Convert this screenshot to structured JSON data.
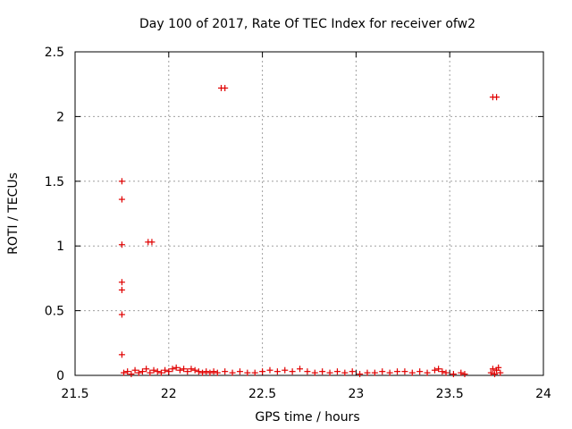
{
  "chart_data": {
    "type": "scatter",
    "title": "Day 100 of 2017, Rate Of TEC Index for receiver ofw2",
    "xlabel": "GPS time / hours",
    "ylabel": "ROTI / TECUs",
    "xlim": [
      21.5,
      24
    ],
    "ylim": [
      0,
      2.5
    ],
    "xticks": [
      21.5,
      22,
      22.5,
      23,
      23.5,
      24
    ],
    "xtick_labels": [
      "21.5",
      "22",
      "22.5",
      "23",
      "23.5",
      "24"
    ],
    "yticks": [
      0,
      0.5,
      1,
      1.5,
      2,
      2.5
    ],
    "ytick_labels": [
      "0",
      "0.5",
      "1",
      "1.5",
      "2",
      "2.5"
    ],
    "grid": true,
    "marker": "+",
    "color": "#e00000",
    "series": [
      {
        "name": "ofw2",
        "points": [
          [
            21.75,
            1.5
          ],
          [
            21.75,
            1.36
          ],
          [
            21.75,
            1.01
          ],
          [
            21.75,
            0.72
          ],
          [
            21.75,
            0.66
          ],
          [
            21.75,
            0.47
          ],
          [
            21.75,
            0.16
          ],
          [
            21.89,
            1.03
          ],
          [
            21.91,
            1.03
          ],
          [
            22.28,
            2.22
          ],
          [
            22.3,
            2.22
          ],
          [
            23.73,
            2.15
          ],
          [
            23.75,
            2.15
          ],
          [
            21.76,
            0.02
          ],
          [
            21.78,
            0.03
          ],
          [
            21.8,
            0.01
          ],
          [
            21.82,
            0.04
          ],
          [
            21.84,
            0.02
          ],
          [
            21.86,
            0.03
          ],
          [
            21.88,
            0.05
          ],
          [
            21.9,
            0.02
          ],
          [
            21.92,
            0.04
          ],
          [
            21.94,
            0.03
          ],
          [
            21.96,
            0.02
          ],
          [
            21.98,
            0.04
          ],
          [
            22.0,
            0.03
          ],
          [
            22.02,
            0.05
          ],
          [
            22.04,
            0.06
          ],
          [
            22.06,
            0.04
          ],
          [
            22.08,
            0.05
          ],
          [
            22.1,
            0.03
          ],
          [
            22.12,
            0.05
          ],
          [
            22.14,
            0.04
          ],
          [
            22.16,
            0.03
          ],
          [
            22.18,
            0.02
          ],
          [
            22.2,
            0.03
          ],
          [
            22.22,
            0.02
          ],
          [
            22.24,
            0.03
          ],
          [
            22.26,
            0.02
          ],
          [
            22.3,
            0.03
          ],
          [
            22.34,
            0.02
          ],
          [
            22.38,
            0.03
          ],
          [
            22.42,
            0.02
          ],
          [
            22.46,
            0.02
          ],
          [
            22.5,
            0.03
          ],
          [
            22.54,
            0.04
          ],
          [
            22.58,
            0.03
          ],
          [
            22.62,
            0.04
          ],
          [
            22.66,
            0.03
          ],
          [
            22.7,
            0.05
          ],
          [
            22.74,
            0.03
          ],
          [
            22.78,
            0.02
          ],
          [
            22.82,
            0.03
          ],
          [
            22.86,
            0.02
          ],
          [
            22.9,
            0.03
          ],
          [
            22.94,
            0.02
          ],
          [
            22.98,
            0.03
          ],
          [
            23.02,
            0.01
          ],
          [
            23.06,
            0.02
          ],
          [
            23.1,
            0.02
          ],
          [
            23.14,
            0.03
          ],
          [
            23.18,
            0.02
          ],
          [
            23.22,
            0.03
          ],
          [
            23.26,
            0.03
          ],
          [
            23.3,
            0.02
          ],
          [
            23.34,
            0.03
          ],
          [
            23.38,
            0.02
          ],
          [
            23.42,
            0.04
          ],
          [
            23.44,
            0.05
          ],
          [
            23.46,
            0.03
          ],
          [
            23.48,
            0.02
          ],
          [
            23.52,
            0.01
          ],
          [
            23.56,
            0.02
          ],
          [
            23.58,
            0.01
          ],
          [
            23.72,
            0.02
          ],
          [
            23.73,
            0.05
          ],
          [
            23.74,
            0.01
          ],
          [
            23.75,
            0.04
          ],
          [
            23.76,
            0.06
          ],
          [
            23.77,
            0.02
          ]
        ]
      }
    ]
  }
}
